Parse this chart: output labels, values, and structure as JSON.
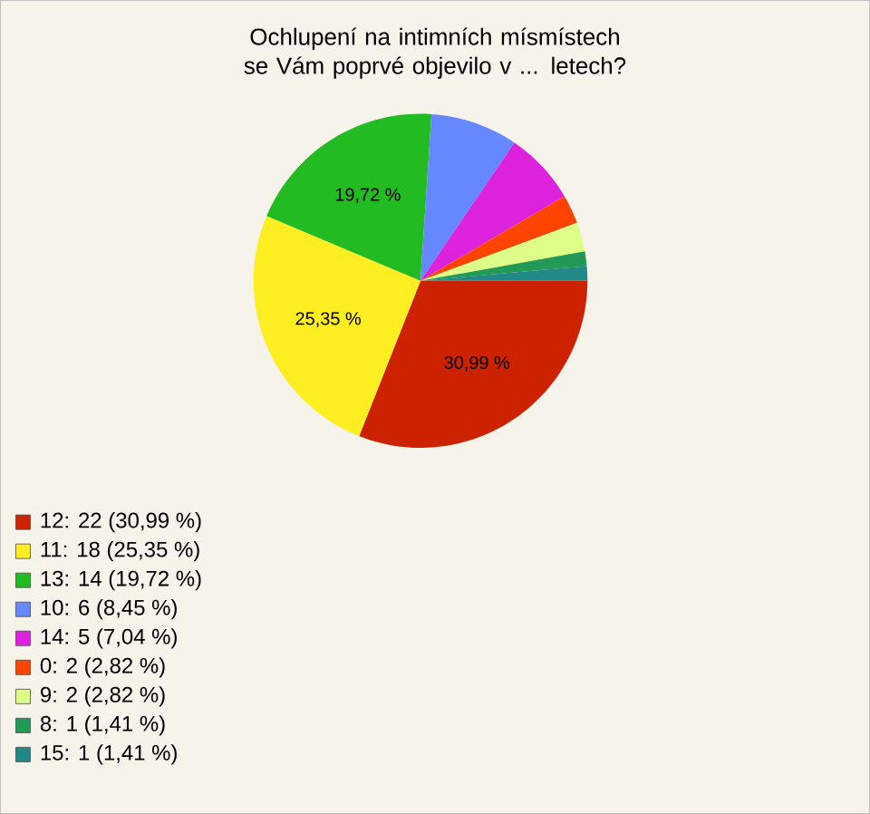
{
  "chart_data": {
    "type": "pie",
    "title": "Ochlupení na intimních mísmístech se Vám poprvé objevilo v ... letech?",
    "categories": [
      "12: 22 (30,99 %)",
      "11: 18 (25,35 %)",
      "13: 14 (19,72 %)",
      "10: 6 (8,45 %)",
      "14: 5 (7,04 %)",
      "0: 2 (2,82 %)",
      "9: 2 (2,82 %)",
      "8: 1 (1,41 %)",
      "15: 1 (1,41 %)"
    ],
    "values": [
      30.99,
      25.35,
      19.72,
      8.45,
      7.04,
      2.82,
      2.82,
      1.41,
      1.41
    ],
    "value_labels": [
      "30,99 %",
      "25,35 %",
      "19,72 %",
      null,
      null,
      null,
      null,
      null,
      null
    ],
    "colors": [
      "#cc2200",
      "#ffee22",
      "#22bb22",
      "#6688ff",
      "#dd22dd",
      "#ff4400",
      "#ddff88",
      "#229955",
      "#228888"
    ],
    "legend": "bottom"
  }
}
